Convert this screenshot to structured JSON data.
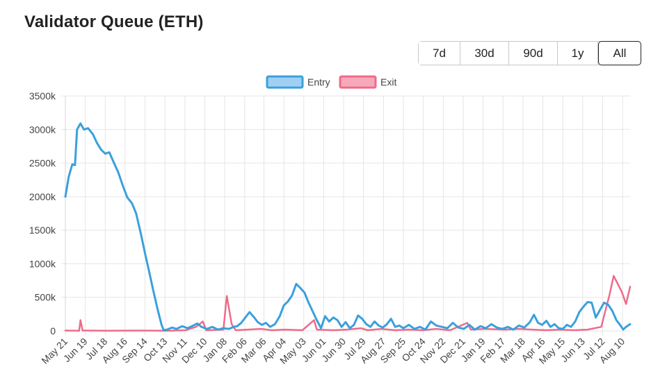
{
  "page": {
    "title": "Validator Queue (ETH)"
  },
  "range_buttons": [
    {
      "label": "7d",
      "active": false
    },
    {
      "label": "30d",
      "active": false
    },
    {
      "label": "90d",
      "active": false
    },
    {
      "label": "1y",
      "active": false
    },
    {
      "label": "All",
      "active": true
    }
  ],
  "chart_data": {
    "type": "line",
    "title": "",
    "xlabel": "",
    "ylabel": "",
    "ylim": [
      0,
      3500000
    ],
    "yticks": [
      {
        "value": 0,
        "label": "0"
      },
      {
        "value": 500000,
        "label": "500k"
      },
      {
        "value": 1000000,
        "label": "1000k"
      },
      {
        "value": 1500000,
        "label": "1500k"
      },
      {
        "value": 2000000,
        "label": "2000k"
      },
      {
        "value": 2500000,
        "label": "2500k"
      },
      {
        "value": 3000000,
        "label": "3000k"
      },
      {
        "value": 3500000,
        "label": "3500k"
      }
    ],
    "x_start": "May 21",
    "x_end": "Aug 20 (following year +1)",
    "total_days": 822,
    "xticks": [
      {
        "day": 0,
        "label": "May 21"
      },
      {
        "day": 29,
        "label": "Jun 19"
      },
      {
        "day": 58,
        "label": "Jul 18"
      },
      {
        "day": 87,
        "label": "Aug 16"
      },
      {
        "day": 116,
        "label": "Sep 14"
      },
      {
        "day": 145,
        "label": "Oct 13"
      },
      {
        "day": 174,
        "label": "Nov 11"
      },
      {
        "day": 203,
        "label": "Dec 10"
      },
      {
        "day": 232,
        "label": "Jan 08"
      },
      {
        "day": 261,
        "label": "Feb 06"
      },
      {
        "day": 289,
        "label": "Mar 06"
      },
      {
        "day": 318,
        "label": "Apr 04"
      },
      {
        "day": 347,
        "label": "May 03"
      },
      {
        "day": 376,
        "label": "Jun 01"
      },
      {
        "day": 405,
        "label": "Jun 30"
      },
      {
        "day": 434,
        "label": "Jul 29"
      },
      {
        "day": 463,
        "label": "Aug 27"
      },
      {
        "day": 492,
        "label": "Sep 25"
      },
      {
        "day": 521,
        "label": "Oct 24"
      },
      {
        "day": 550,
        "label": "Nov 22"
      },
      {
        "day": 579,
        "label": "Dec 21"
      },
      {
        "day": 608,
        "label": "Jan 19"
      },
      {
        "day": 637,
        "label": "Feb 17"
      },
      {
        "day": 666,
        "label": "Mar 18"
      },
      {
        "day": 695,
        "label": "Apr 16"
      },
      {
        "day": 724,
        "label": "May 15"
      },
      {
        "day": 753,
        "label": "Jun 13"
      },
      {
        "day": 782,
        "label": "Jul 12"
      },
      {
        "day": 811,
        "label": "Aug 10"
      }
    ],
    "legend_position": "top-center",
    "grid": true,
    "series": [
      {
        "name": "Entry",
        "color": "#3aa0dc",
        "fill": "#9fd0f4",
        "points": [
          [
            0,
            2000000
          ],
          [
            5,
            2300000
          ],
          [
            10,
            2480000
          ],
          [
            14,
            2470000
          ],
          [
            17,
            3000000
          ],
          [
            22,
            3090000
          ],
          [
            27,
            3000000
          ],
          [
            33,
            3020000
          ],
          [
            40,
            2930000
          ],
          [
            46,
            2800000
          ],
          [
            52,
            2700000
          ],
          [
            58,
            2640000
          ],
          [
            64,
            2660000
          ],
          [
            70,
            2520000
          ],
          [
            77,
            2360000
          ],
          [
            83,
            2180000
          ],
          [
            90,
            1990000
          ],
          [
            97,
            1900000
          ],
          [
            103,
            1750000
          ],
          [
            110,
            1440000
          ],
          [
            116,
            1150000
          ],
          [
            122,
            880000
          ],
          [
            128,
            600000
          ],
          [
            134,
            330000
          ],
          [
            140,
            90000
          ],
          [
            143,
            10000
          ],
          [
            148,
            20000
          ],
          [
            155,
            50000
          ],
          [
            162,
            30000
          ],
          [
            170,
            70000
          ],
          [
            178,
            40000
          ],
          [
            186,
            80000
          ],
          [
            192,
            110000
          ],
          [
            198,
            60000
          ],
          [
            206,
            30000
          ],
          [
            214,
            60000
          ],
          [
            222,
            20000
          ],
          [
            230,
            40000
          ],
          [
            238,
            30000
          ],
          [
            245,
            60000
          ],
          [
            250,
            70000
          ],
          [
            256,
            120000
          ],
          [
            262,
            200000
          ],
          [
            268,
            280000
          ],
          [
            274,
            210000
          ],
          [
            280,
            130000
          ],
          [
            286,
            90000
          ],
          [
            292,
            120000
          ],
          [
            298,
            60000
          ],
          [
            305,
            100000
          ],
          [
            312,
            220000
          ],
          [
            318,
            380000
          ],
          [
            324,
            440000
          ],
          [
            330,
            530000
          ],
          [
            336,
            700000
          ],
          [
            342,
            640000
          ],
          [
            348,
            570000
          ],
          [
            354,
            420000
          ],
          [
            360,
            290000
          ],
          [
            366,
            160000
          ],
          [
            372,
            40000
          ],
          [
            378,
            220000
          ],
          [
            384,
            140000
          ],
          [
            390,
            200000
          ],
          [
            396,
            160000
          ],
          [
            402,
            60000
          ],
          [
            408,
            130000
          ],
          [
            414,
            40000
          ],
          [
            420,
            90000
          ],
          [
            426,
            230000
          ],
          [
            432,
            180000
          ],
          [
            438,
            100000
          ],
          [
            444,
            60000
          ],
          [
            450,
            140000
          ],
          [
            456,
            80000
          ],
          [
            462,
            50000
          ],
          [
            468,
            100000
          ],
          [
            474,
            180000
          ],
          [
            480,
            60000
          ],
          [
            486,
            80000
          ],
          [
            492,
            40000
          ],
          [
            500,
            90000
          ],
          [
            508,
            30000
          ],
          [
            516,
            60000
          ],
          [
            524,
            20000
          ],
          [
            532,
            140000
          ],
          [
            540,
            80000
          ],
          [
            548,
            60000
          ],
          [
            556,
            40000
          ],
          [
            564,
            120000
          ],
          [
            572,
            50000
          ],
          [
            580,
            30000
          ],
          [
            588,
            90000
          ],
          [
            596,
            20000
          ],
          [
            604,
            70000
          ],
          [
            612,
            40000
          ],
          [
            620,
            100000
          ],
          [
            628,
            50000
          ],
          [
            636,
            30000
          ],
          [
            644,
            60000
          ],
          [
            652,
            20000
          ],
          [
            660,
            80000
          ],
          [
            668,
            50000
          ],
          [
            676,
            130000
          ],
          [
            682,
            240000
          ],
          [
            688,
            120000
          ],
          [
            694,
            90000
          ],
          [
            700,
            150000
          ],
          [
            706,
            60000
          ],
          [
            712,
            100000
          ],
          [
            718,
            40000
          ],
          [
            724,
            30000
          ],
          [
            730,
            90000
          ],
          [
            736,
            60000
          ],
          [
            742,
            140000
          ],
          [
            748,
            280000
          ],
          [
            754,
            360000
          ],
          [
            760,
            430000
          ],
          [
            766,
            420000
          ],
          [
            772,
            200000
          ],
          [
            778,
            310000
          ],
          [
            784,
            420000
          ],
          [
            790,
            390000
          ],
          [
            796,
            300000
          ],
          [
            802,
            160000
          ],
          [
            808,
            80000
          ],
          [
            812,
            20000
          ],
          [
            816,
            60000
          ],
          [
            822,
            100000
          ]
        ]
      },
      {
        "name": "Exit",
        "color": "#ef6b8a",
        "fill": "#f7a8ba",
        "points": [
          [
            0,
            5000
          ],
          [
            20,
            3000
          ],
          [
            22,
            160000
          ],
          [
            25,
            5000
          ],
          [
            60,
            3000
          ],
          [
            110,
            5000
          ],
          [
            150,
            3000
          ],
          [
            175,
            10000
          ],
          [
            190,
            60000
          ],
          [
            200,
            140000
          ],
          [
            205,
            10000
          ],
          [
            230,
            20000
          ],
          [
            235,
            520000
          ],
          [
            242,
            100000
          ],
          [
            248,
            10000
          ],
          [
            265,
            20000
          ],
          [
            285,
            30000
          ],
          [
            300,
            10000
          ],
          [
            320,
            20000
          ],
          [
            345,
            10000
          ],
          [
            362,
            160000
          ],
          [
            366,
            20000
          ],
          [
            390,
            10000
          ],
          [
            410,
            20000
          ],
          [
            430,
            40000
          ],
          [
            440,
            10000
          ],
          [
            460,
            30000
          ],
          [
            480,
            10000
          ],
          [
            500,
            20000
          ],
          [
            520,
            10000
          ],
          [
            540,
            30000
          ],
          [
            560,
            10000
          ],
          [
            585,
            120000
          ],
          [
            590,
            20000
          ],
          [
            610,
            30000
          ],
          [
            640,
            20000
          ],
          [
            660,
            30000
          ],
          [
            680,
            20000
          ],
          [
            700,
            10000
          ],
          [
            720,
            20000
          ],
          [
            740,
            10000
          ],
          [
            760,
            20000
          ],
          [
            780,
            60000
          ],
          [
            786,
            300000
          ],
          [
            792,
            540000
          ],
          [
            798,
            820000
          ],
          [
            804,
            700000
          ],
          [
            810,
            580000
          ],
          [
            816,
            400000
          ],
          [
            822,
            660000
          ]
        ]
      }
    ]
  }
}
